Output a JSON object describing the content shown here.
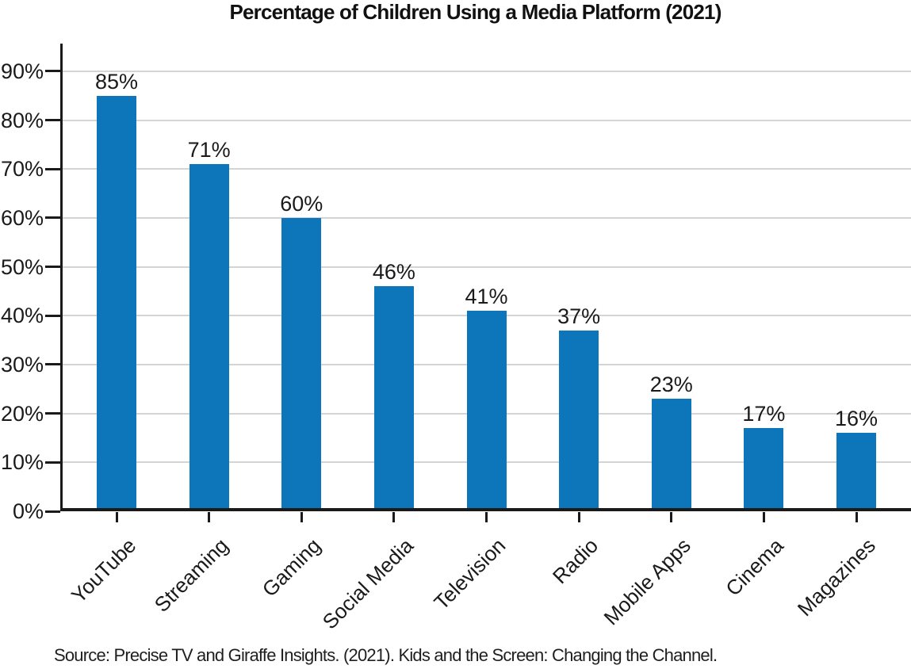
{
  "chart_data": {
    "type": "bar",
    "title": "Percentage of Children Using a Media Platform (2021)",
    "categories": [
      "YouTube",
      "Streaming",
      "Gaming",
      "Social Media",
      "Television",
      "Radio",
      "Mobile Apps",
      "Cinema",
      "Magazines"
    ],
    "values": [
      85,
      71,
      60,
      46,
      41,
      37,
      23,
      17,
      16
    ],
    "value_labels": [
      "85%",
      "71%",
      "60%",
      "46%",
      "41%",
      "37%",
      "23%",
      "17%",
      "16%"
    ],
    "xlabel": "",
    "ylabel": "",
    "ylim": [
      0,
      96
    ],
    "y_ticks": [
      0,
      10,
      20,
      30,
      40,
      50,
      60,
      70,
      80,
      90
    ],
    "y_tick_labels": [
      "0%",
      "10%",
      "20%",
      "30%",
      "40%",
      "50%",
      "60%",
      "70%",
      "80%",
      "90%"
    ],
    "grid": "horizontal",
    "legend": "none",
    "source": "Source: Precise TV and Giraffe Insights. (2021). Kids and the Screen: Changing the Channel."
  },
  "colors": {
    "bar": "#0d76ba",
    "axis": "#1a1a1a",
    "grid": "#d4d4d4",
    "text": "#1a1a1a"
  }
}
